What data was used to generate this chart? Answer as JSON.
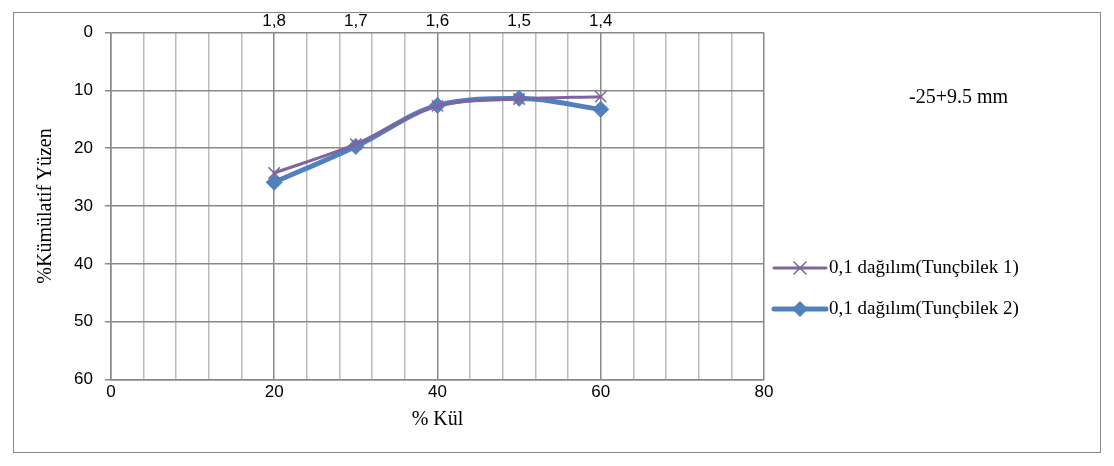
{
  "chart_data": {
    "type": "line",
    "xlabel": "% Kül",
    "ylabel": "%Kümülatif Yüzen",
    "x": [
      20,
      30,
      40,
      50,
      60
    ],
    "series": [
      {
        "name": "0,1 dağılım(Tunçbilek 1)",
        "color": "#8064a2",
        "marker": "cross",
        "values": [
          24.3,
          19.3,
          12.7,
          11.5,
          11.1
        ]
      },
      {
        "name": "0,1 dağılım(Tunçbilek 2)",
        "color": "#4f81bd",
        "marker": "diamond",
        "values": [
          25.9,
          19.7,
          12.6,
          11.4,
          13.3
        ]
      }
    ],
    "xlim": [
      0,
      80
    ],
    "xticks": [
      0,
      {
        "value": 4,
        "label": null
      },
      {
        "value": 8,
        "label": null
      },
      {
        "value": 12,
        "label": null
      },
      {
        "value": 16,
        "label": null
      },
      20,
      {
        "value": 24,
        "label": null
      },
      {
        "value": 28,
        "label": null
      },
      {
        "value": 32,
        "label": null
      },
      {
        "value": 36,
        "label": null
      },
      40,
      {
        "value": 44,
        "label": null
      },
      {
        "value": 48,
        "label": null
      },
      {
        "value": 52,
        "label": null
      },
      {
        "value": 56,
        "label": null
      },
      60,
      {
        "value": 64,
        "label": null
      },
      {
        "value": 68,
        "label": null
      },
      {
        "value": 72,
        "label": null
      },
      {
        "value": 76,
        "label": null
      },
      80
    ],
    "ylim": [
      60,
      0
    ],
    "yticks": [
      0,
      10,
      20,
      30,
      40,
      50,
      60
    ],
    "grid": true,
    "legend": "right",
    "line_style": "solid",
    "x2lim": [
      2.0,
      1.2
    ],
    "x2ticks": [
      {
        "value": 1.8,
        "label": "1,8"
      },
      {
        "value": 1.7,
        "label": "1,7"
      },
      {
        "value": 1.6,
        "label": "1,6"
      },
      {
        "value": 1.5,
        "label": "1,5"
      },
      {
        "value": 1.4,
        "label": "1,4"
      }
    ],
    "annotations": [
      "-25+9.5 mm"
    ]
  }
}
